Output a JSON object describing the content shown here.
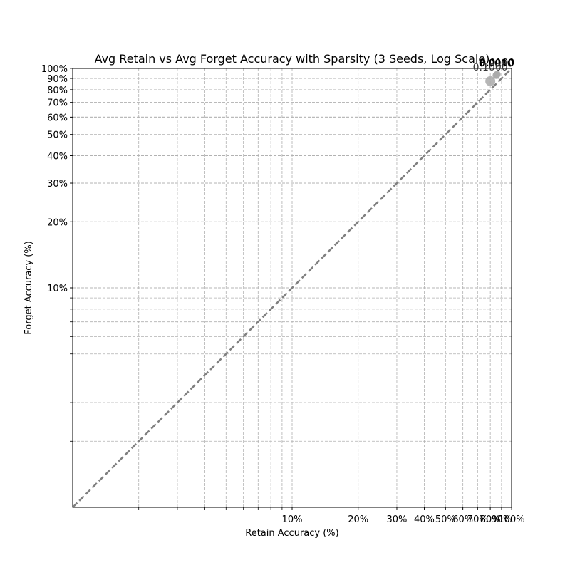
{
  "chart_data": {
    "type": "scatter",
    "title": "Avg Retain vs Avg Forget Accuracy with Sparsity (3 Seeds, Log Scale)",
    "xlabel": "Retain Accuracy (%)",
    "ylabel": "Forget Accuracy (%)",
    "xscale": "log",
    "yscale": "log",
    "xlim": [
      1.0,
      100
    ],
    "ylim": [
      1.0,
      100
    ],
    "grid": true,
    "x_tick_labels": [
      {
        "value": 10,
        "label": "10%"
      },
      {
        "value": 20,
        "label": "20%"
      },
      {
        "value": 30,
        "label": "30%"
      },
      {
        "value": 40,
        "label": "40%"
      },
      {
        "value": 50,
        "label": "50%"
      },
      {
        "value": 60,
        "label": "60%"
      },
      {
        "value": 70,
        "label": "70%"
      },
      {
        "value": 80,
        "label": "80%"
      },
      {
        "value": 90,
        "label": "90%"
      },
      {
        "value": 100,
        "label": "100%"
      }
    ],
    "y_tick_labels": [
      {
        "value": 10,
        "label": "10%"
      },
      {
        "value": 20,
        "label": "20%"
      },
      {
        "value": 30,
        "label": "30%"
      },
      {
        "value": 40,
        "label": "40%"
      },
      {
        "value": 50,
        "label": "50%"
      },
      {
        "value": 60,
        "label": "60%"
      },
      {
        "value": 70,
        "label": "70%"
      },
      {
        "value": 80,
        "label": "80%"
      },
      {
        "value": 90,
        "label": "90%"
      },
      {
        "value": 100,
        "label": "100%"
      }
    ],
    "reference_line": {
      "style": "dashed",
      "color": "#808080",
      "x": [
        1,
        100
      ],
      "y": [
        1,
        100
      ]
    },
    "points": [
      {
        "label": "0.0000",
        "x": 85.0,
        "y": 93.0,
        "color": "#a9a9a9",
        "size": "small"
      },
      {
        "label": "0.0010",
        "x": 85.5,
        "y": 93.5,
        "color": "#a9a9a9",
        "size": "small"
      },
      {
        "label": "0.0100",
        "x": 86.0,
        "y": 94.0,
        "color": "#a9a9a9",
        "size": "small"
      },
      {
        "label": "0.1000",
        "x": 80.0,
        "y": 87.5,
        "color": "#a9a9a9",
        "size": "large"
      }
    ]
  }
}
